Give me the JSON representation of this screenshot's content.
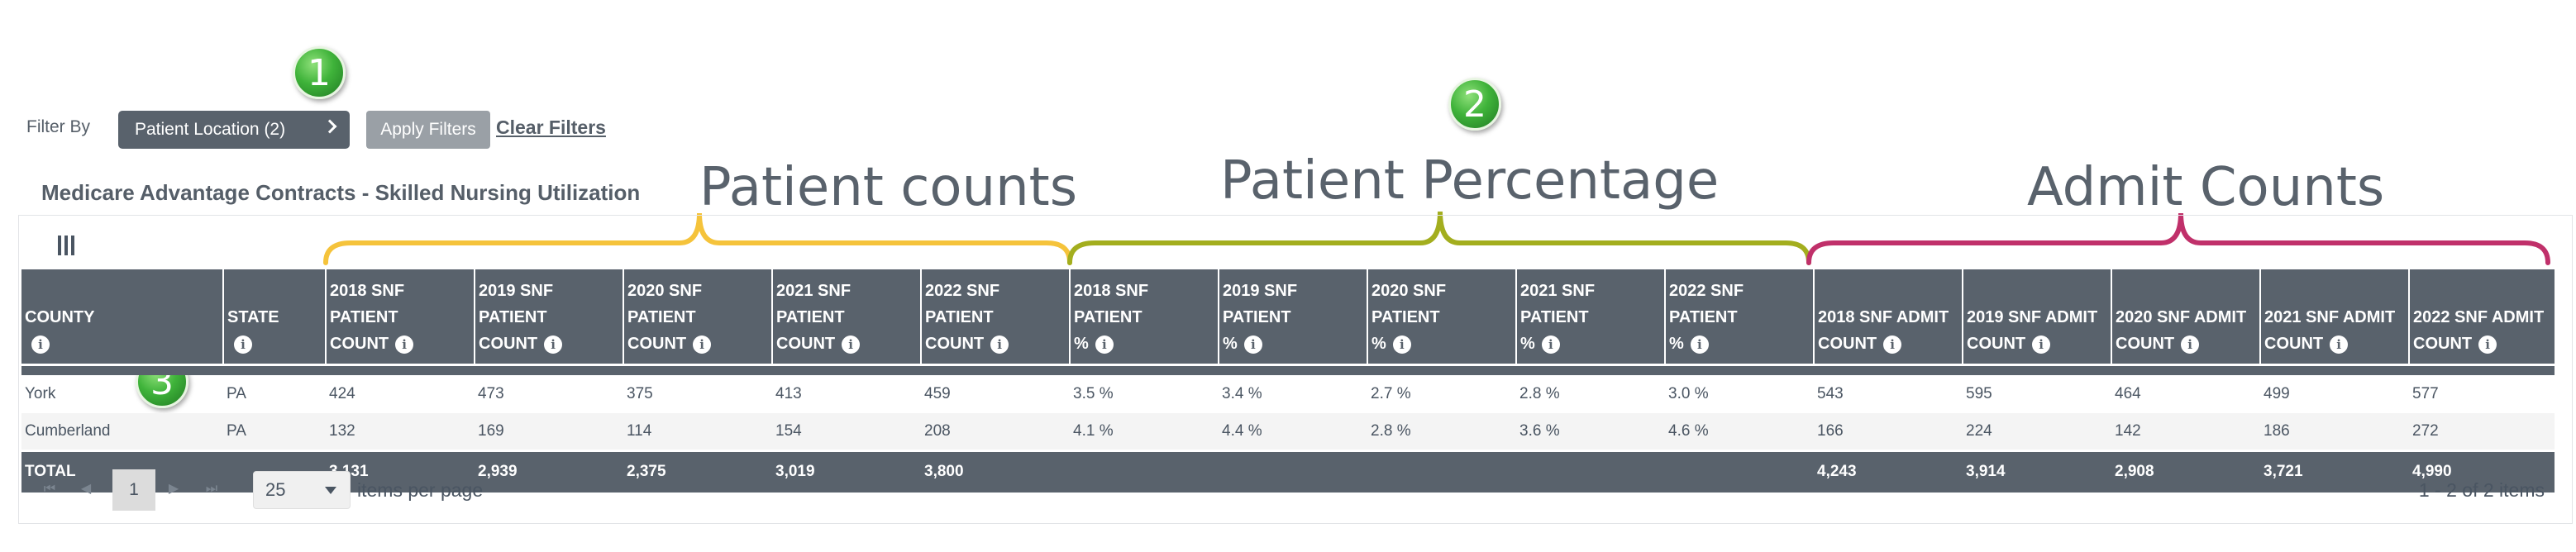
{
  "filters": {
    "label": "Filter By",
    "location_button": "Patient Location (2)",
    "apply_button": "Apply Filters",
    "clear_link": "Clear Filters"
  },
  "markers": [
    "1",
    "2",
    "3"
  ],
  "grid_title": "Medicare Advantage Contracts - Skilled Nursing Utilization",
  "annotations": {
    "patient_counts": "Patient counts",
    "patient_percentage": "Patient Percentage",
    "admit_counts": "Admit Counts"
  },
  "annotation_colors": {
    "patient_counts": "#f5c33b",
    "patient_percentage": "#a3ae1e",
    "admit_counts": "#c0306a"
  },
  "column_toggle_icon": "columns-icon",
  "info_icon_glyph": "i",
  "columns": [
    {
      "line1": "COUNTY",
      "line2": ""
    },
    {
      "line1": "STATE",
      "line2": ""
    },
    {
      "line1": "2018 SNF PATIENT",
      "line2": "COUNT"
    },
    {
      "line1": "2019 SNF PATIENT",
      "line2": "COUNT"
    },
    {
      "line1": "2020 SNF PATIENT",
      "line2": "COUNT"
    },
    {
      "line1": "2021 SNF PATIENT",
      "line2": "COUNT"
    },
    {
      "line1": "2022 SNF PATIENT",
      "line2": "COUNT"
    },
    {
      "line1": "2018 SNF PATIENT",
      "line2": "%"
    },
    {
      "line1": "2019 SNF PATIENT",
      "line2": "%"
    },
    {
      "line1": "2020 SNF PATIENT",
      "line2": "%"
    },
    {
      "line1": "2021 SNF PATIENT",
      "line2": "%"
    },
    {
      "line1": "2022 SNF PATIENT",
      "line2": "%"
    },
    {
      "line1": "2018 SNF ADMIT",
      "line2": "COUNT"
    },
    {
      "line1": "2019 SNF ADMIT",
      "line2": "COUNT"
    },
    {
      "line1": "2020 SNF ADMIT",
      "line2": "COUNT"
    },
    {
      "line1": "2021 SNF ADMIT",
      "line2": "COUNT"
    },
    {
      "line1": "2022 SNF ADMIT",
      "line2": "COUNT"
    }
  ],
  "rows": [
    [
      "York",
      "PA",
      "424",
      "473",
      "375",
      "413",
      "459",
      "3.5 %",
      "3.4 %",
      "2.7 %",
      "2.8 %",
      "3.0 %",
      "543",
      "595",
      "464",
      "499",
      "577"
    ],
    [
      "Cumberland",
      "PA",
      "132",
      "169",
      "114",
      "154",
      "208",
      "4.1 %",
      "4.4 %",
      "2.8 %",
      "3.6 %",
      "4.6 %",
      "166",
      "224",
      "142",
      "186",
      "272"
    ]
  ],
  "totals": [
    "TOTAL",
    "",
    "3,131",
    "2,939",
    "2,375",
    "3,019",
    "3,800",
    "",
    "",
    "",
    "",
    "",
    "4,243",
    "3,914",
    "2,908",
    "3,721",
    "4,990"
  ],
  "pager": {
    "current_page": "1",
    "page_size": "25",
    "items_per_page_label": "items per page",
    "info": "1 - 2 of 2 items"
  }
}
